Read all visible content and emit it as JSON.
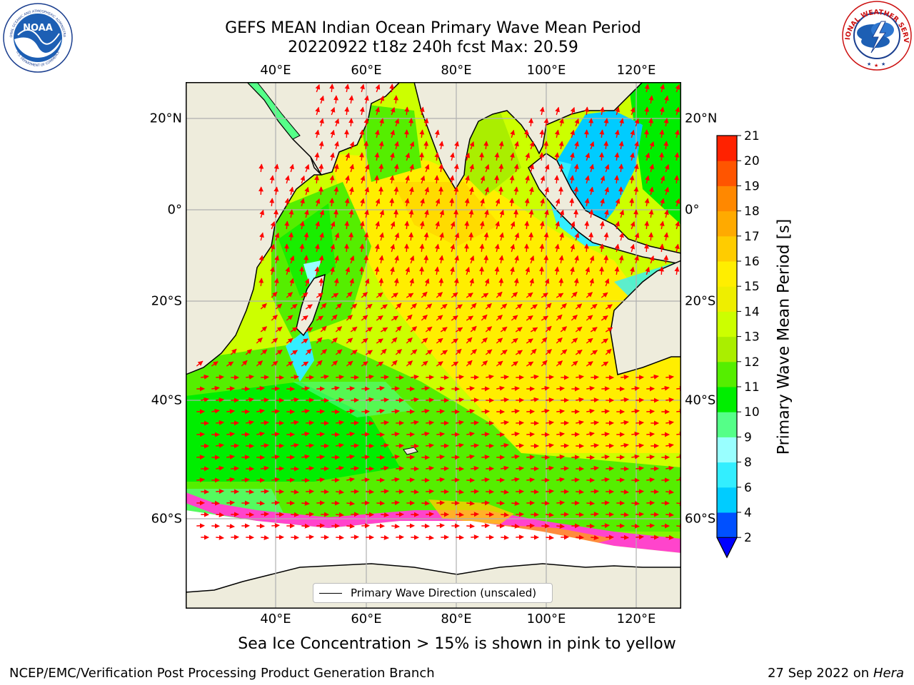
{
  "title_line1": "GEFS MEAN Indian Ocean Primary Wave Mean Period",
  "title_line2": "20220922 t18z 240h fcst   Max: 20.59",
  "longitude_labels": [
    "40°E",
    "60°E",
    "80°E",
    "100°E",
    "120°E"
  ],
  "latitude_labels": [
    "20°N",
    "0°",
    "20°S",
    "40°S",
    "60°S"
  ],
  "colorbar": {
    "label": "Primary Wave Mean Period [s]",
    "ticks": [
      "2",
      "4",
      "6",
      "8",
      "9",
      "10",
      "11",
      "12",
      "13",
      "14",
      "15",
      "16",
      "17",
      "18",
      "19",
      "20",
      "21"
    ],
    "colors": [
      "#0050ff",
      "#00ccff",
      "#33eeff",
      "#99ffff",
      "#55ff88",
      "#00ee00",
      "#55ee00",
      "#aaee00",
      "#ccff00",
      "#eeee00",
      "#ffee00",
      "#ffcc00",
      "#ffaa00",
      "#ff8800",
      "#ff5500",
      "#ff2200"
    ],
    "under_color": "#0000ff"
  },
  "legend": {
    "label": "Primary Wave Direction (unscaled)"
  },
  "colors": {
    "land": "#eeecdc",
    "ice": "#ffffff",
    "arrow": "#ff0000",
    "grid": "#b0b0b0"
  },
  "footer": {
    "note": "Sea Ice Concentration > 15% is shown in pink to yellow",
    "producer": "NCEP/EMC/Verification Post Processing Product Generation Branch",
    "date": "27 Sep 2022 on",
    "machine": "Hera"
  },
  "logos": {
    "noaa_text": "NOAA",
    "noaa_ring": "NATIONAL OCEANIC AND ATMOSPHERIC ADMINISTRATION",
    "noaa_ring_bottom": "U.S. DEPARTMENT OF COMMERCE",
    "nws_ring": "NATIONAL WEATHER SERVICE"
  }
}
